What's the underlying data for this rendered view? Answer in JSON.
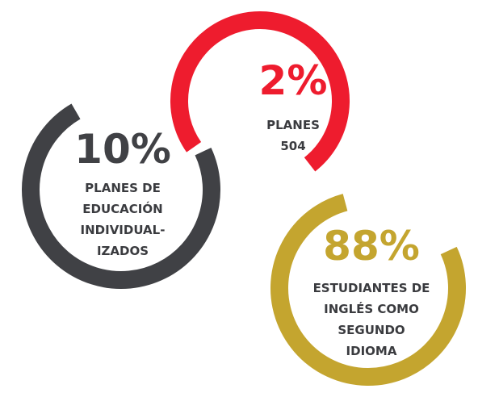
{
  "items": [
    {
      "value": "10%",
      "lines": [
        "PLANES DE",
        "EDUCACIÓN",
        "INDIVIDUAL-",
        "IZADOS"
      ]
    },
    {
      "value": "2%",
      "lines": [
        "PLANES",
        "504"
      ]
    },
    {
      "value": "88%",
      "lines": [
        "ESTUDIANTES DE",
        "INGLÉS COMO",
        "SEGUNDO",
        "IDIOMA"
      ]
    }
  ]
}
